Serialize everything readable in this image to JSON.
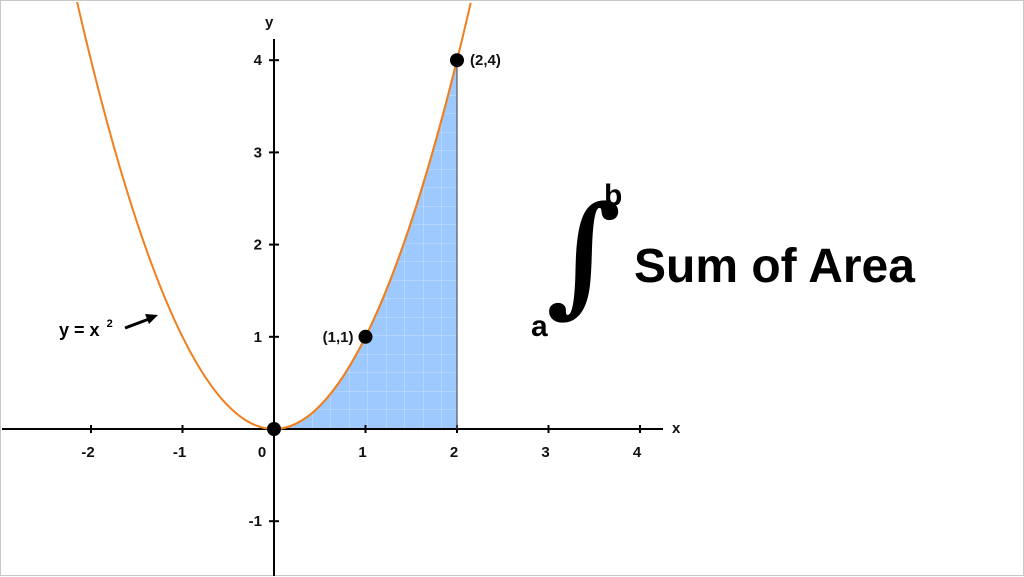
{
  "colors": {
    "curve": "#f07f1e",
    "fill": "#9ec9ff",
    "fill_grid": "#ffffff",
    "axis": "#000000",
    "text": "#111111"
  },
  "annotation": {
    "title": "Sum of Area",
    "lower_limit": "a",
    "upper_limit": "b",
    "integral_symbol": "∫",
    "equation_lhs": "y = x",
    "equation_exponent": "2"
  },
  "chart_data": {
    "type": "area",
    "function": "y = x^2",
    "xlabel": "x",
    "ylabel": "y",
    "xlim": [
      -2.9,
      4.25
    ],
    "ylim": [
      -1.6,
      4.6
    ],
    "x_ticks": [
      -2,
      -1,
      0,
      1,
      2,
      3,
      4
    ],
    "x_tick_labels": [
      "-2",
      "-1",
      "0",
      "1",
      "2",
      "3",
      "4"
    ],
    "y_ticks": [
      -1,
      1,
      2,
      3,
      4
    ],
    "y_tick_labels": [
      "-1",
      "1",
      "2",
      "3",
      "4"
    ],
    "shaded_interval": [
      0,
      2
    ],
    "curve_x_range": [
      -2.2,
      2.15
    ],
    "points": [
      {
        "x": 0,
        "y": 0,
        "label": ""
      },
      {
        "x": 1,
        "y": 1,
        "label": "(1,1)"
      },
      {
        "x": 2,
        "y": 4,
        "label": "(2,4)"
      }
    ],
    "grid": false
  }
}
